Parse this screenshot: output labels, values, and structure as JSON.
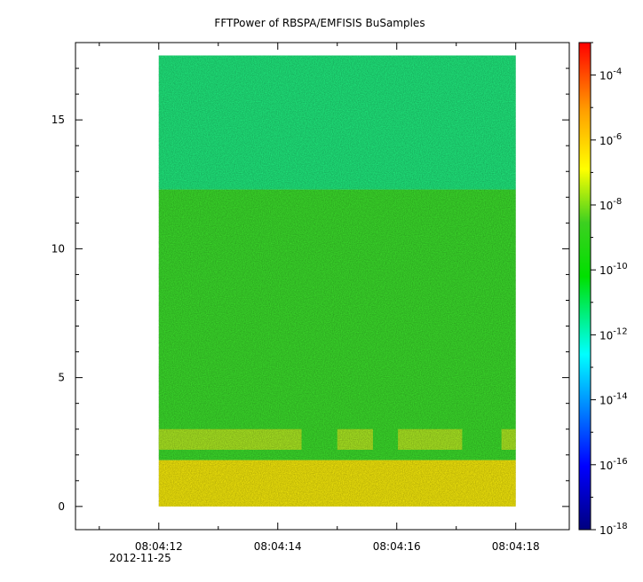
{
  "chart_data": {
    "type": "heatmap",
    "title": "FFTPower of RBSPA/EMFISIS  BuSamples",
    "xlabel": "",
    "ylabel": "",
    "x_axis": {
      "range": [
        "08:04:10.6",
        "08:04:18.9"
      ],
      "major_ticks": [
        "08:04:12",
        "08:04:14",
        "08:04:16",
        "08:04:18"
      ],
      "date_label": "2012-11-25",
      "date_under_tick": "08:04:12"
    },
    "y_axis": {
      "range": [
        -0.9,
        18.0
      ],
      "ticks": [
        "0",
        "5",
        "10",
        "15"
      ]
    },
    "colorbar": {
      "scale": "log",
      "range": [
        1e-18,
        0.001
      ],
      "ticks": [
        {
          "base": "10",
          "exp": "-18"
        },
        {
          "base": "10",
          "exp": "-16"
        },
        {
          "base": "10",
          "exp": "-14"
        },
        {
          "base": "10",
          "exp": "-12"
        },
        {
          "base": "10",
          "exp": "-10"
        },
        {
          "base": "10",
          "exp": "-8"
        },
        {
          "base": "10",
          "exp": "-6"
        },
        {
          "base": "10",
          "exp": "-4"
        }
      ],
      "colormap": "rainbow (blue-cyan-green-yellow-red)"
    },
    "data_extent": {
      "x": [
        "08:04:12",
        "08:04:18"
      ],
      "y": [
        0,
        17.5
      ]
    },
    "bands": [
      {
        "y_range": [
          0,
          1.8
        ],
        "log10_power": -8.8,
        "color": "#f0e40a"
      },
      {
        "y_range": [
          1.8,
          12.3
        ],
        "log10_power": -10.3,
        "color": "#3ad82a"
      },
      {
        "y_range": [
          2.2,
          3.0
        ],
        "log10_power": -9.2,
        "color": "#d6e81e",
        "note": "intermittent bursts"
      },
      {
        "y_range": [
          12.3,
          17.5
        ],
        "log10_power": -11.6,
        "color": "#1fe47a"
      }
    ]
  }
}
